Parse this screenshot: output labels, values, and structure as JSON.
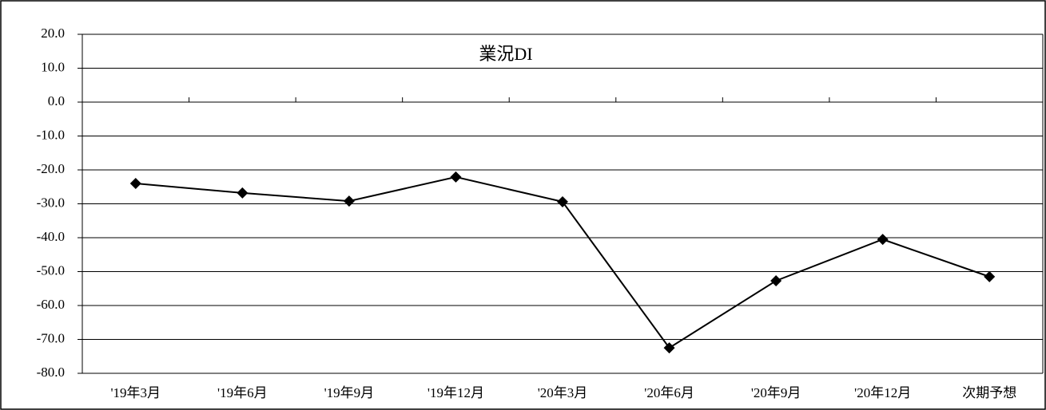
{
  "chart_data": {
    "type": "line",
    "title": "業況DI",
    "categories": [
      "'19年3月",
      "'19年6月",
      "'19年9月",
      "'19年12月",
      "'20年3月",
      "'20年6月",
      "'20年9月",
      "'20年12月",
      "次期予想"
    ],
    "values": [
      -24.0,
      -26.8,
      -29.2,
      -22.1,
      -29.4,
      -72.5,
      -52.7,
      -40.5,
      -51.5
    ],
    "color": "#000000",
    "ylim": [
      -80,
      20
    ],
    "yticks": [
      {
        "value": 20,
        "label": "20.0"
      },
      {
        "value": 10,
        "label": "10.0"
      },
      {
        "value": 0,
        "label": "0.0"
      },
      {
        "value": -10,
        "label": "-10.0"
      },
      {
        "value": -20,
        "label": "-20.0"
      },
      {
        "value": -30,
        "label": "-30.0"
      },
      {
        "value": -40,
        "label": "-40.0"
      },
      {
        "value": -50,
        "label": "-50.0"
      },
      {
        "value": -60,
        "label": "-60.0"
      },
      {
        "value": -70,
        "label": "-70.0"
      },
      {
        "value": -80,
        "label": "-80.0"
      }
    ],
    "grid": true
  }
}
